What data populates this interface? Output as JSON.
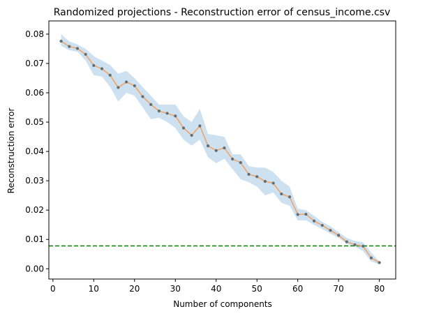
{
  "chart_data": {
    "type": "line",
    "title": "Randomized projections - Reconstruction error of census_income.csv",
    "xlabel": "Number of components",
    "ylabel": "Reconstruction error",
    "xlim": [
      -1,
      84
    ],
    "ylim": [
      -0.0035,
      0.0845
    ],
    "xticks": [
      0,
      10,
      20,
      30,
      40,
      50,
      60,
      70,
      80
    ],
    "xtick_labels": [
      "0",
      "10",
      "20",
      "30",
      "40",
      "50",
      "60",
      "70",
      "80"
    ],
    "yticks": [
      0.0,
      0.01,
      0.02,
      0.03,
      0.04,
      0.05,
      0.06,
      0.07,
      0.08
    ],
    "ytick_labels": [
      "0.00",
      "0.01",
      "0.02",
      "0.03",
      "0.04",
      "0.05",
      "0.06",
      "0.07",
      "0.08"
    ],
    "grid": false,
    "series": [
      {
        "type": "line",
        "color": "#f5a05e",
        "marker_color": "#5f6f77",
        "x": [
          2,
          4,
          6,
          8,
          10,
          12,
          14,
          16,
          18,
          20,
          22,
          24,
          26,
          28,
          30,
          32,
          34,
          36,
          38,
          40,
          42,
          44,
          46,
          48,
          50,
          52,
          54,
          56,
          58,
          60,
          62,
          64,
          66,
          68,
          70,
          72,
          74,
          76,
          78,
          80
        ],
        "y": [
          0.0776,
          0.0758,
          0.0751,
          0.0731,
          0.0693,
          0.0682,
          0.066,
          0.0618,
          0.0637,
          0.0624,
          0.0587,
          0.056,
          0.0538,
          0.053,
          0.0521,
          0.048,
          0.0455,
          0.0487,
          0.0419,
          0.0403,
          0.0412,
          0.0374,
          0.0362,
          0.0322,
          0.0314,
          0.0298,
          0.0292,
          0.0255,
          0.0245,
          0.0185,
          0.0186,
          0.0163,
          0.0148,
          0.0131,
          0.0114,
          0.0092,
          0.0082,
          0.0077,
          0.0037,
          0.0021
        ]
      }
    ],
    "band": {
      "color": "#a6c9e4",
      "opacity": 0.55,
      "x": [
        2,
        4,
        6,
        8,
        10,
        12,
        14,
        16,
        18,
        20,
        22,
        24,
        26,
        28,
        30,
        32,
        34,
        36,
        38,
        40,
        42,
        44,
        46,
        48,
        50,
        52,
        54,
        56,
        58,
        60,
        62,
        64,
        66,
        68,
        70,
        72,
        74,
        76,
        78,
        80
      ],
      "upper": [
        0.08,
        0.0775,
        0.0765,
        0.075,
        0.0725,
        0.071,
        0.0695,
        0.0665,
        0.0675,
        0.065,
        0.062,
        0.059,
        0.056,
        0.056,
        0.056,
        0.052,
        0.05,
        0.0545,
        0.046,
        0.0455,
        0.045,
        0.039,
        0.039,
        0.035,
        0.0345,
        0.0345,
        0.033,
        0.03,
        0.028,
        0.0205,
        0.02,
        0.018,
        0.016,
        0.0145,
        0.0125,
        0.0105,
        0.0095,
        0.009,
        0.0055,
        0.0025
      ],
      "lower": [
        0.076,
        0.0745,
        0.074,
        0.071,
        0.066,
        0.0655,
        0.062,
        0.057,
        0.06,
        0.059,
        0.055,
        0.051,
        0.0515,
        0.05,
        0.048,
        0.044,
        0.042,
        0.044,
        0.038,
        0.036,
        0.0375,
        0.034,
        0.0305,
        0.0295,
        0.028,
        0.025,
        0.026,
        0.0225,
        0.0215,
        0.0165,
        0.0165,
        0.015,
        0.0135,
        0.012,
        0.0105,
        0.0085,
        0.0075,
        0.006,
        0.0025,
        0.0015
      ]
    },
    "reference_line": {
      "y": 0.0078,
      "color": "#008000",
      "style": "dashed"
    }
  }
}
